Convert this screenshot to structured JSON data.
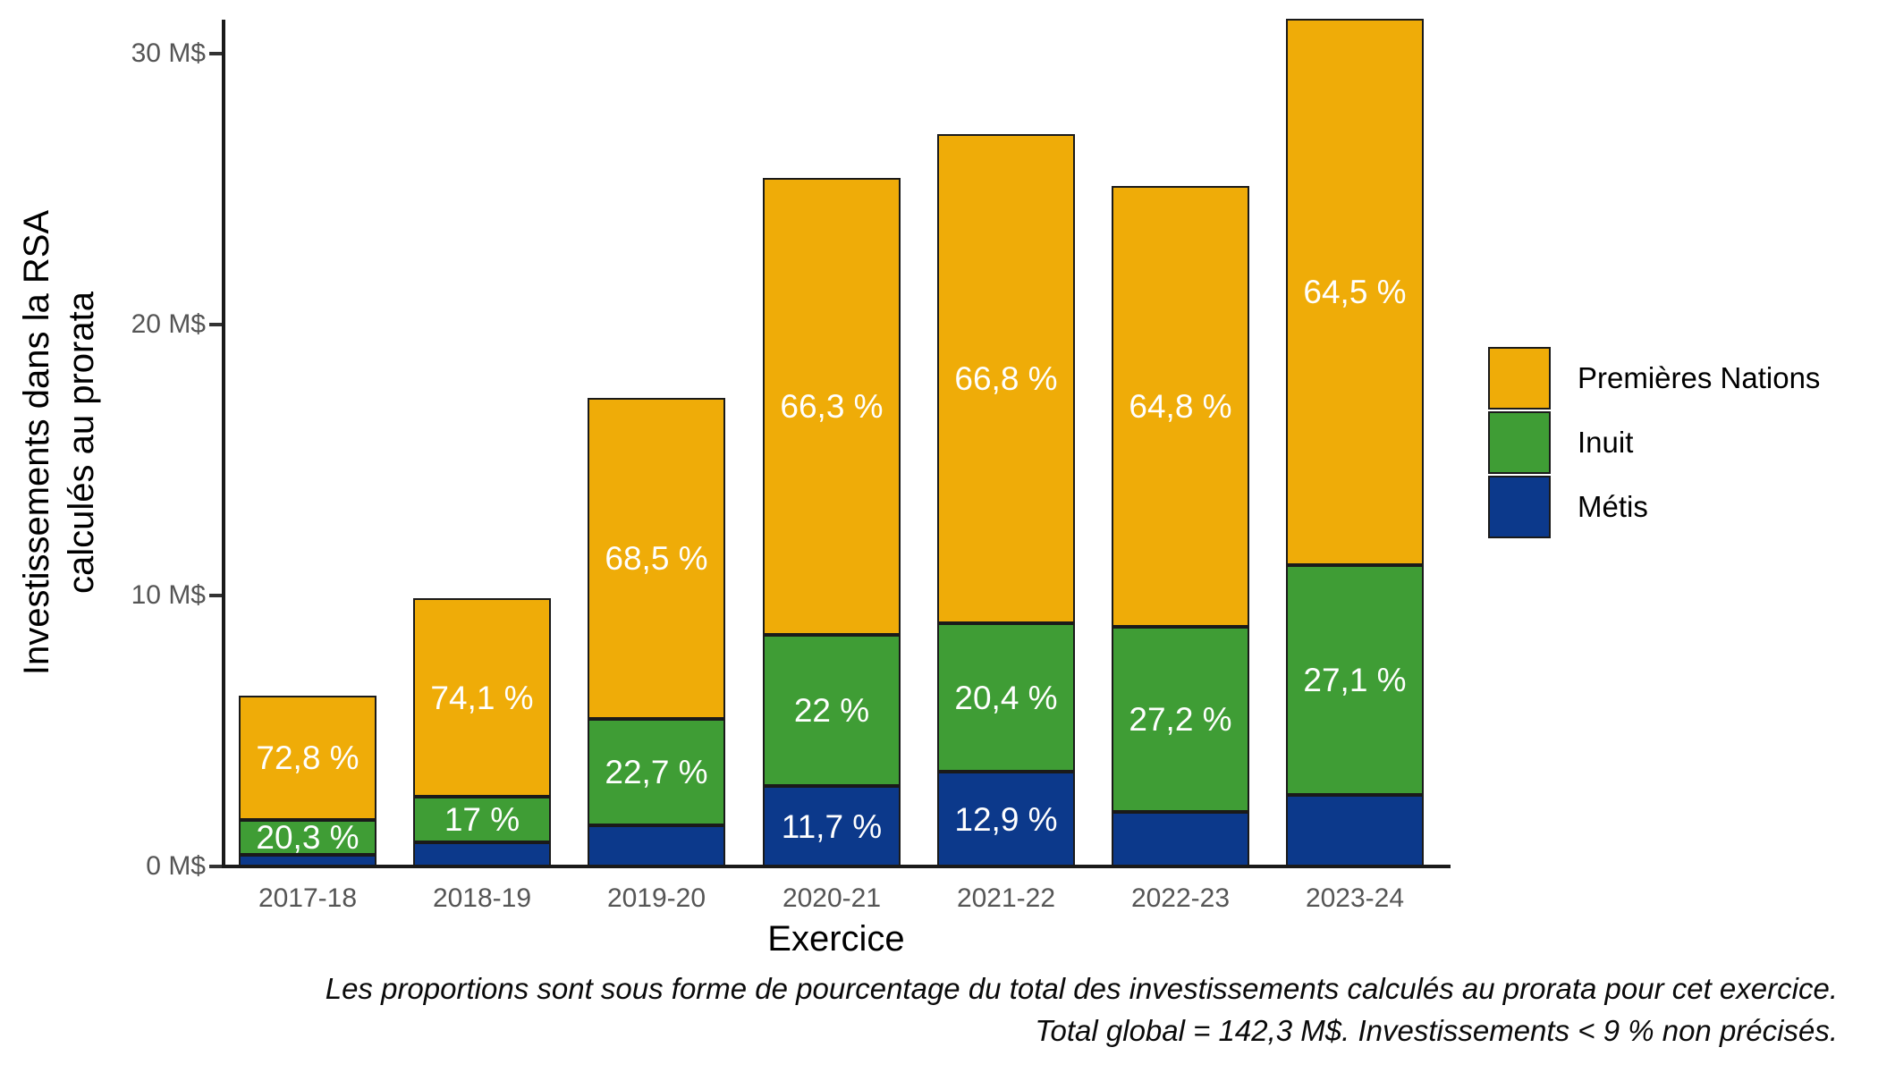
{
  "y_axis": {
    "title_line1": "Investissements dans la RSA",
    "title_line2": "calculés au prorata",
    "ticks": [
      {
        "value": 0,
        "label": "0 M$"
      },
      {
        "value": 10,
        "label": "10 M$"
      },
      {
        "value": 20,
        "label": "20 M$"
      },
      {
        "value": 30,
        "label": "30 M$"
      }
    ]
  },
  "x_axis": {
    "title": "Exercice"
  },
  "legend": {
    "items": [
      {
        "label": "Premières Nations",
        "color": "#EFAC08"
      },
      {
        "label": "Inuit",
        "color": "#3F9D35"
      },
      {
        "label": "Métis",
        "color": "#0C398B"
      }
    ]
  },
  "caption": {
    "line1": "Les proportions sont sous forme de pourcentage du total des investissements calculés au prorata pour cet exercice.",
    "line2": "Total global = 142,3 M$. Investissements < 9 % non précisés."
  },
  "chart_data": {
    "type": "bar",
    "stacked": true,
    "title": "",
    "xlabel": "Exercice",
    "ylabel": "Investissements dans la RSA calculés au prorata",
    "ylim": [
      0,
      31.5
    ],
    "ytick_values": [
      0,
      10,
      20,
      30
    ],
    "grid": false,
    "legend_position": "right",
    "categories": [
      "2017-18",
      "2018-19",
      "2019-20",
      "2020-21",
      "2021-22",
      "2022-23",
      "2023-24"
    ],
    "totals_millions": [
      6.3,
      9.9,
      17.3,
      25.4,
      27.0,
      25.1,
      31.3
    ],
    "total_global_label": "Total global = 142,3 M$",
    "series": [
      {
        "name": "Métis",
        "color": "#0C398B",
        "pct": [
          6.9,
          8.9,
          8.8,
          11.7,
          12.9,
          8.0,
          8.4
        ],
        "values_millions": [
          0.43,
          0.88,
          1.52,
          2.97,
          3.48,
          2.01,
          2.63
        ],
        "labels": [
          "",
          "",
          "",
          "11,7 %",
          "12,9 %",
          "",
          ""
        ]
      },
      {
        "name": "Inuit",
        "color": "#3F9D35",
        "pct": [
          20.3,
          17.0,
          22.7,
          22.0,
          20.4,
          27.2,
          27.1
        ],
        "values_millions": [
          1.28,
          1.68,
          3.93,
          5.59,
          5.51,
          6.83,
          8.48
        ],
        "labels": [
          "20,3 %",
          "17 %",
          "22,7 %",
          "22 %",
          "20,4 %",
          "27,2 %",
          "27,1 %"
        ]
      },
      {
        "name": "Premières Nations",
        "color": "#EFAC08",
        "pct": [
          72.8,
          74.1,
          68.5,
          66.3,
          66.8,
          64.8,
          64.5
        ],
        "values_millions": [
          4.59,
          7.34,
          11.85,
          16.84,
          18.04,
          16.26,
          20.19
        ],
        "labels": [
          "72,8 %",
          "74,1 %",
          "68,5 %",
          "66,3 %",
          "66,8 %",
          "64,8 %",
          "64,5 %"
        ]
      }
    ]
  }
}
